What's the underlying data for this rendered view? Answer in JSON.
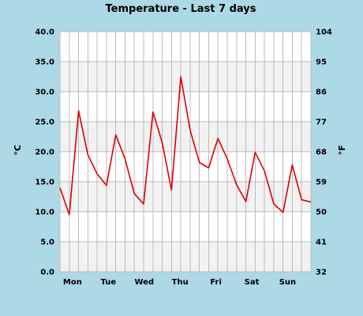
{
  "chart_data": {
    "type": "line",
    "title": "Temperature - Last 7 days",
    "ylabel_left": "°C",
    "ylabel_right": "°F",
    "ylim": [
      0,
      40
    ],
    "yticks_left": [
      "0.0",
      "5.0",
      "10.0",
      "15.0",
      "20.0",
      "25.0",
      "30.0",
      "35.0",
      "40.0"
    ],
    "yticks_right": [
      "32",
      "41",
      "50",
      "59",
      "68",
      "77",
      "86",
      "95",
      "104"
    ],
    "categories": [
      "Mon",
      "Tue",
      "Wed",
      "Thu",
      "Fri",
      "Sat",
      "Sun"
    ],
    "grid": true,
    "series": [
      {
        "color": "#dd0000",
        "x": [
          0,
          1,
          2,
          3,
          4,
          5,
          6,
          7,
          8,
          9,
          10,
          11,
          12,
          13,
          14,
          15,
          16,
          17,
          18,
          19,
          20,
          21,
          22,
          23,
          24,
          25,
          26,
          27
        ],
        "values": [
          14.0,
          9.5,
          26.8,
          19.5,
          16.3,
          14.4,
          22.8,
          18.8,
          13.0,
          11.3,
          26.6,
          21.5,
          13.6,
          32.5,
          23.6,
          18.2,
          17.3,
          22.2,
          18.8,
          14.5,
          11.7,
          19.9,
          16.8,
          11.3,
          9.9,
          17.8,
          12.0,
          11.6
        ]
      }
    ]
  },
  "colors": {
    "background": "#add8e6",
    "plot_background": "#ffffff",
    "band_background": "#f2f2f2",
    "grid_line": "#bbbbbb",
    "line": "#dd0000"
  }
}
